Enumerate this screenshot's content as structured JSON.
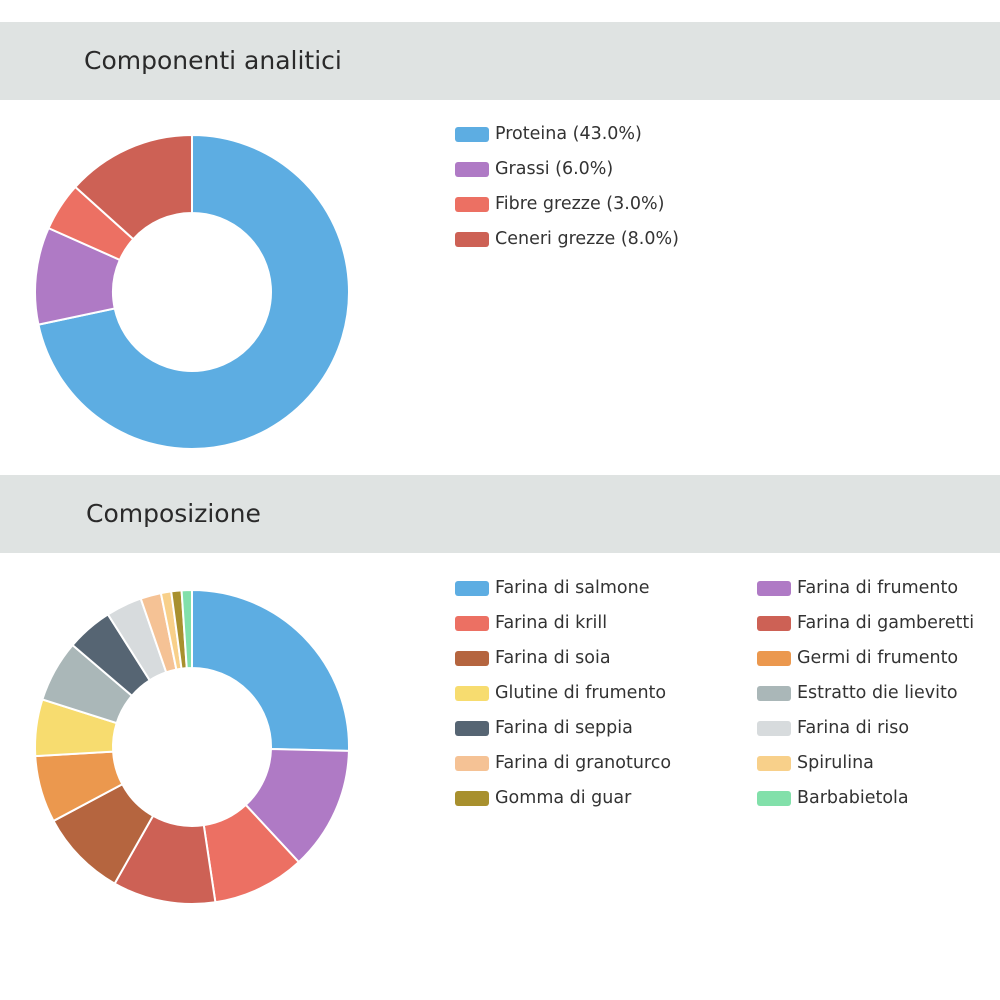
{
  "sections": [
    {
      "title": "Componenti analitici"
    },
    {
      "title": "Composizione"
    }
  ],
  "chart_data": [
    {
      "type": "pie",
      "variant": "donut",
      "title": "Componenti analitici",
      "legend_position": "right",
      "slices": [
        {
          "label": "Proteina (43.0%)",
          "value": 43.0,
          "color": "#5dade2"
        },
        {
          "label": "Grassi (6.0%)",
          "value": 6.0,
          "color": "#af7ac5"
        },
        {
          "label": "Fibre grezze (3.0%)",
          "value": 3.0,
          "color": "#ec7063"
        },
        {
          "label": "Ceneri grezze (8.0%)",
          "value": 8.0,
          "color": "#cd6155"
        }
      ]
    },
    {
      "type": "pie",
      "variant": "donut",
      "title": "Composizione",
      "legend_position": "right",
      "legend_columns": 2,
      "slices": [
        {
          "label": "Farina di salmone",
          "value": 24.0,
          "color": "#5dade2"
        },
        {
          "label": "Farina di frumento",
          "value": 12.0,
          "color": "#af7ac5"
        },
        {
          "label": "Farina di krill",
          "value": 9.0,
          "color": "#ec7063"
        },
        {
          "label": "Farina di gamberetti",
          "value": 10.0,
          "color": "#cd6155"
        },
        {
          "label": "Farina di soia",
          "value": 8.5,
          "color": "#b5653f"
        },
        {
          "label": "Germi di frumento",
          "value": 6.5,
          "color": "#eb984e"
        },
        {
          "label": "Glutine di frumento",
          "value": 5.5,
          "color": "#f7dc6f"
        },
        {
          "label": "Estratto die lievito",
          "value": 6.0,
          "color": "#aab7b8"
        },
        {
          "label": "Farina di seppia",
          "value": 4.5,
          "color": "#566573"
        },
        {
          "label": "Farina di riso",
          "value": 3.5,
          "color": "#d7dbdd"
        },
        {
          "label": "Farina di granoturco",
          "value": 2.0,
          "color": "#f5c295"
        },
        {
          "label": "Spirulina",
          "value": 1.0,
          "color": "#f8d08a"
        },
        {
          "label": "Gomma di guar",
          "value": 1.0,
          "color": "#a8902e"
        },
        {
          "label": "Barbabietola",
          "value": 1.0,
          "color": "#82e0aa"
        }
      ]
    }
  ]
}
